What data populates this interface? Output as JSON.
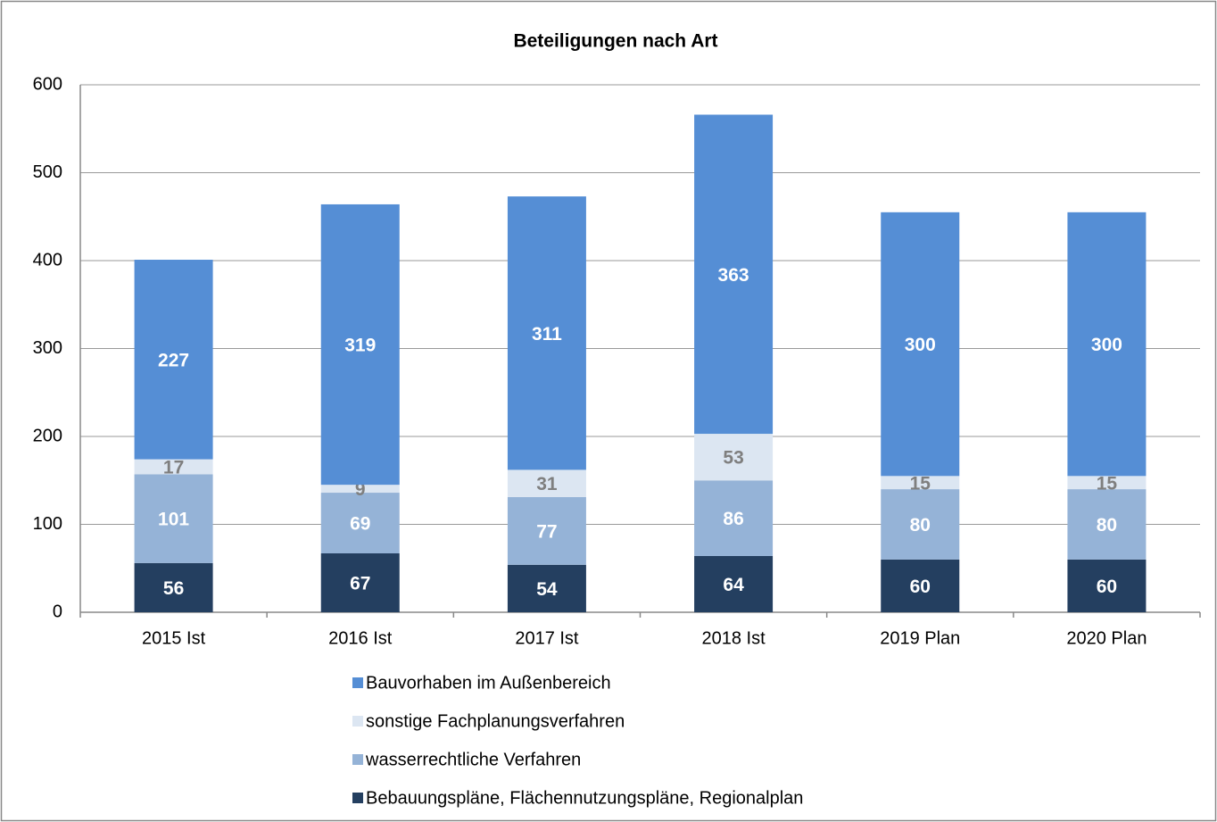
{
  "chart_data": {
    "type": "stacked_bar",
    "title": "Beteiligungen nach Art",
    "categories": [
      "2015 Ist",
      "2016 Ist",
      "2017 Ist",
      "2018 Ist",
      "2019 Plan",
      "2020 Plan"
    ],
    "series": [
      {
        "name": "Bebauungspläne, Flächennutzungspläne, Regionalplan",
        "color": "#243f60",
        "label_color": "#ffffff",
        "values": [
          56,
          67,
          54,
          64,
          60,
          60
        ]
      },
      {
        "name": "wasserrechtliche Verfahren",
        "color": "#95b3d7",
        "label_color": "#ffffff",
        "values": [
          101,
          69,
          77,
          86,
          80,
          80
        ]
      },
      {
        "name": "sonstige Fachplanungsverfahren",
        "color": "#dce6f2",
        "label_color": "#7f7f7f",
        "values": [
          17,
          9,
          31,
          53,
          15,
          15
        ]
      },
      {
        "name": "Bauvorhaben im Außenbereich",
        "color": "#558ed5",
        "label_color": "#ffffff",
        "values": [
          227,
          319,
          311,
          363,
          300,
          300
        ]
      }
    ],
    "ylim": [
      0,
      600
    ],
    "yticks": [
      0,
      100,
      200,
      300,
      400,
      500,
      600
    ],
    "grid": true,
    "legend": "bottom"
  }
}
